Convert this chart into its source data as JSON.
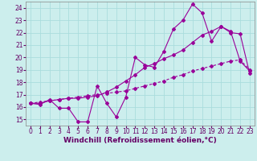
{
  "xlabel": "Windchill (Refroidissement éolien,°C)",
  "bg_color": "#cceeed",
  "grid_color": "#aadddd",
  "line_color": "#990099",
  "xlim": [
    -0.5,
    23.5
  ],
  "ylim": [
    14.5,
    24.5
  ],
  "xticks": [
    0,
    1,
    2,
    3,
    4,
    5,
    6,
    7,
    8,
    9,
    10,
    11,
    12,
    13,
    14,
    15,
    16,
    17,
    18,
    19,
    20,
    21,
    22,
    23
  ],
  "yticks": [
    15,
    16,
    17,
    18,
    19,
    20,
    21,
    22,
    23,
    24
  ],
  "series1_x": [
    0,
    1,
    2,
    3,
    4,
    5,
    6,
    7,
    8,
    9,
    10,
    11,
    12,
    13,
    14,
    15,
    16,
    17,
    18,
    19,
    20,
    21,
    22,
    23
  ],
  "series1_y": [
    16.3,
    16.2,
    16.6,
    15.9,
    15.9,
    14.8,
    14.8,
    17.7,
    16.3,
    15.2,
    16.8,
    20.0,
    19.4,
    19.2,
    20.5,
    22.3,
    23.0,
    24.3,
    23.6,
    21.3,
    22.5,
    22.0,
    21.9,
    18.7
  ],
  "series2_x": [
    0,
    1,
    2,
    3,
    4,
    5,
    6,
    7,
    8,
    9,
    10,
    11,
    12,
    13,
    14,
    15,
    16,
    17,
    18,
    19,
    20,
    21,
    22,
    23
  ],
  "series2_y": [
    16.3,
    16.4,
    16.5,
    16.6,
    16.7,
    16.8,
    16.9,
    17.0,
    17.1,
    17.2,
    17.3,
    17.5,
    17.7,
    17.9,
    18.1,
    18.4,
    18.6,
    18.9,
    19.1,
    19.3,
    19.5,
    19.7,
    19.8,
    19.0
  ],
  "series3_x": [
    0,
    1,
    2,
    3,
    4,
    5,
    6,
    7,
    8,
    9,
    10,
    11,
    12,
    13,
    14,
    15,
    16,
    17,
    18,
    19,
    20,
    21,
    22,
    23
  ],
  "series3_y": [
    16.3,
    16.3,
    16.5,
    16.6,
    16.7,
    16.7,
    16.8,
    16.9,
    17.2,
    17.6,
    18.1,
    18.6,
    19.2,
    19.5,
    19.9,
    20.2,
    20.6,
    21.2,
    21.8,
    22.1,
    22.5,
    22.1,
    19.7,
    18.9
  ],
  "xlabel_fontsize": 6.5,
  "tick_fontsize": 5.5,
  "linewidth": 0.8,
  "markersize": 2.0
}
